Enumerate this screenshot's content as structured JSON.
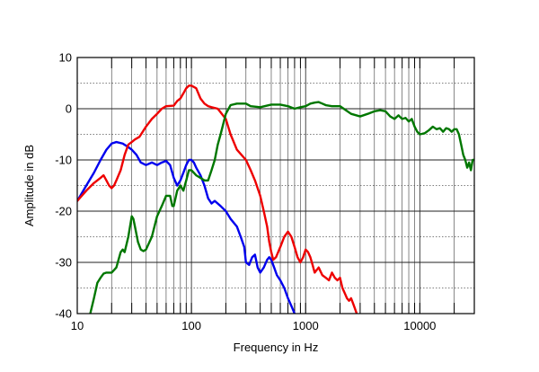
{
  "chart_data": {
    "type": "line",
    "title": "",
    "xlabel": "Frequency in Hz",
    "ylabel": "Amplitude in dB",
    "x_scale": "log",
    "xlim": [
      10,
      30000
    ],
    "ylim": [
      -40,
      10
    ],
    "grid": true,
    "legend": "none",
    "x_ticks": [
      10,
      100,
      1000,
      10000
    ],
    "x_tick_labels": [
      "10",
      "100",
      "1000",
      "10000"
    ],
    "y_ticks": [
      10,
      0,
      -10,
      -20,
      -30,
      -40
    ],
    "y_tick_labels": [
      "10",
      "0",
      "-10",
      "-20",
      "-30",
      "-40"
    ],
    "series": [
      {
        "color": "#0000ee",
        "points": [
          [
            10,
            -18
          ],
          [
            12,
            -15
          ],
          [
            14,
            -12.5
          ],
          [
            16,
            -10
          ],
          [
            18,
            -8
          ],
          [
            20,
            -6.8
          ],
          [
            22,
            -6.5
          ],
          [
            25,
            -6.8
          ],
          [
            28,
            -7.5
          ],
          [
            30,
            -8
          ],
          [
            33,
            -9
          ],
          [
            36,
            -10.5
          ],
          [
            40,
            -11
          ],
          [
            45,
            -10.5
          ],
          [
            50,
            -11
          ],
          [
            55,
            -10.5
          ],
          [
            60,
            -10.2
          ],
          [
            65,
            -11
          ],
          [
            70,
            -13.5
          ],
          [
            75,
            -15
          ],
          [
            80,
            -14
          ],
          [
            85,
            -12.5
          ],
          [
            90,
            -11
          ],
          [
            95,
            -10
          ],
          [
            100,
            -10
          ],
          [
            105,
            -10.5
          ],
          [
            110,
            -11.5
          ],
          [
            120,
            -13
          ],
          [
            130,
            -15
          ],
          [
            140,
            -17.5
          ],
          [
            150,
            -18.5
          ],
          [
            160,
            -18
          ],
          [
            180,
            -19
          ],
          [
            200,
            -20
          ],
          [
            220,
            -21.5
          ],
          [
            250,
            -23
          ],
          [
            270,
            -25
          ],
          [
            290,
            -27
          ],
          [
            300,
            -30
          ],
          [
            320,
            -30.5
          ],
          [
            340,
            -29
          ],
          [
            360,
            -28.5
          ],
          [
            380,
            -31
          ],
          [
            400,
            -32
          ],
          [
            430,
            -31
          ],
          [
            460,
            -29.5
          ],
          [
            480,
            -29
          ],
          [
            500,
            -29.5
          ],
          [
            530,
            -31
          ],
          [
            560,
            -32.5
          ],
          [
            600,
            -33.5
          ],
          [
            650,
            -35
          ],
          [
            700,
            -37
          ],
          [
            750,
            -38.5
          ],
          [
            800,
            -40
          ]
        ]
      },
      {
        "color": "#ee0000",
        "points": [
          [
            10,
            -18
          ],
          [
            12,
            -16
          ],
          [
            14,
            -14.5
          ],
          [
            16,
            -13.5
          ],
          [
            17,
            -13
          ],
          [
            18,
            -14
          ],
          [
            19,
            -15
          ],
          [
            20,
            -15.5
          ],
          [
            21,
            -15
          ],
          [
            22,
            -14
          ],
          [
            24,
            -12
          ],
          [
            26,
            -9
          ],
          [
            28,
            -7
          ],
          [
            30,
            -6.5
          ],
          [
            32,
            -6
          ],
          [
            35,
            -5.5
          ],
          [
            40,
            -3.5
          ],
          [
            45,
            -2
          ],
          [
            50,
            -1
          ],
          [
            55,
            0
          ],
          [
            60,
            0.5
          ],
          [
            70,
            0.6
          ],
          [
            75,
            1.5
          ],
          [
            80,
            2
          ],
          [
            85,
            3
          ],
          [
            90,
            4
          ],
          [
            95,
            4.5
          ],
          [
            100,
            4.5
          ],
          [
            110,
            4
          ],
          [
            120,
            2
          ],
          [
            130,
            1
          ],
          [
            140,
            0.5
          ],
          [
            150,
            0.3
          ],
          [
            170,
            0
          ],
          [
            200,
            -2
          ],
          [
            220,
            -5
          ],
          [
            250,
            -8
          ],
          [
            300,
            -10
          ],
          [
            330,
            -12
          ],
          [
            360,
            -14
          ],
          [
            400,
            -17
          ],
          [
            430,
            -20
          ],
          [
            460,
            -23
          ],
          [
            480,
            -26
          ],
          [
            500,
            -28
          ],
          [
            520,
            -29.5
          ],
          [
            550,
            -29
          ],
          [
            600,
            -27
          ],
          [
            650,
            -25
          ],
          [
            700,
            -24
          ],
          [
            750,
            -25
          ],
          [
            800,
            -27
          ],
          [
            850,
            -29
          ],
          [
            900,
            -30
          ],
          [
            950,
            -29
          ],
          [
            1000,
            -27.5
          ],
          [
            1050,
            -28
          ],
          [
            1100,
            -29
          ],
          [
            1150,
            -30.5
          ],
          [
            1200,
            -32
          ],
          [
            1300,
            -31
          ],
          [
            1400,
            -32.5
          ],
          [
            1500,
            -33
          ],
          [
            1600,
            -33.5
          ],
          [
            1700,
            -32
          ],
          [
            1800,
            -33
          ],
          [
            1900,
            -33.5
          ],
          [
            2000,
            -33
          ],
          [
            2100,
            -35
          ],
          [
            2200,
            -36
          ],
          [
            2300,
            -37
          ],
          [
            2400,
            -37.5
          ],
          [
            2500,
            -37
          ],
          [
            2600,
            -38
          ],
          [
            2700,
            -39
          ],
          [
            2800,
            -40
          ]
        ]
      },
      {
        "color": "#007700",
        "points": [
          [
            13,
            -40
          ],
          [
            14,
            -37
          ],
          [
            15,
            -34
          ],
          [
            16,
            -33
          ],
          [
            17,
            -32.2
          ],
          [
            18,
            -32
          ],
          [
            20,
            -32
          ],
          [
            22,
            -31
          ],
          [
            24,
            -28
          ],
          [
            25,
            -27.5
          ],
          [
            26,
            -28
          ],
          [
            28,
            -25
          ],
          [
            30,
            -21
          ],
          [
            31,
            -21.5
          ],
          [
            32,
            -23
          ],
          [
            34,
            -26
          ],
          [
            36,
            -27.5
          ],
          [
            38,
            -27.8
          ],
          [
            40,
            -27.5
          ],
          [
            45,
            -25
          ],
          [
            50,
            -21
          ],
          [
            55,
            -19
          ],
          [
            60,
            -17
          ],
          [
            65,
            -17
          ],
          [
            68,
            -19
          ],
          [
            70,
            -19
          ],
          [
            75,
            -16
          ],
          [
            80,
            -15
          ],
          [
            85,
            -16
          ],
          [
            90,
            -14
          ],
          [
            95,
            -12
          ],
          [
            100,
            -12
          ],
          [
            110,
            -13
          ],
          [
            120,
            -13.5
          ],
          [
            130,
            -14
          ],
          [
            140,
            -14
          ],
          [
            150,
            -12
          ],
          [
            160,
            -10
          ],
          [
            170,
            -7
          ],
          [
            180,
            -5
          ],
          [
            200,
            -1
          ],
          [
            220,
            0.7
          ],
          [
            250,
            1
          ],
          [
            300,
            1
          ],
          [
            330,
            0.5
          ],
          [
            400,
            0.3
          ],
          [
            500,
            0.8
          ],
          [
            600,
            0.8
          ],
          [
            700,
            0.5
          ],
          [
            800,
            0
          ],
          [
            900,
            0.3
          ],
          [
            1000,
            0.5
          ],
          [
            1100,
            1
          ],
          [
            1200,
            1.2
          ],
          [
            1300,
            1.3
          ],
          [
            1400,
            1
          ],
          [
            1500,
            0.7
          ],
          [
            1700,
            0.5
          ],
          [
            2000,
            0.5
          ],
          [
            2500,
            -1
          ],
          [
            3000,
            -1.5
          ],
          [
            3500,
            -1
          ],
          [
            4000,
            -0.5
          ],
          [
            4500,
            -0.3
          ],
          [
            5000,
            -0.5
          ],
          [
            5500,
            -1.5
          ],
          [
            6000,
            -2
          ],
          [
            6500,
            -1.3
          ],
          [
            7000,
            -2
          ],
          [
            7500,
            -1.8
          ],
          [
            8000,
            -2.5
          ],
          [
            8500,
            -2
          ],
          [
            9000,
            -3.5
          ],
          [
            9500,
            -4.5
          ],
          [
            10000,
            -5
          ],
          [
            11000,
            -4.8
          ],
          [
            12000,
            -4.2
          ],
          [
            13000,
            -3.5
          ],
          [
            14000,
            -4
          ],
          [
            15000,
            -3.8
          ],
          [
            16000,
            -4.5
          ],
          [
            17000,
            -3.8
          ],
          [
            18000,
            -4
          ],
          [
            19000,
            -4.5
          ],
          [
            20000,
            -4
          ],
          [
            21000,
            -4
          ],
          [
            22000,
            -5
          ],
          [
            23000,
            -7
          ],
          [
            24000,
            -9
          ],
          [
            25000,
            -10
          ],
          [
            26000,
            -11.5
          ],
          [
            27000,
            -10.5
          ],
          [
            28000,
            -12
          ],
          [
            29000,
            -10
          ],
          [
            30000,
            -10
          ]
        ]
      }
    ]
  }
}
